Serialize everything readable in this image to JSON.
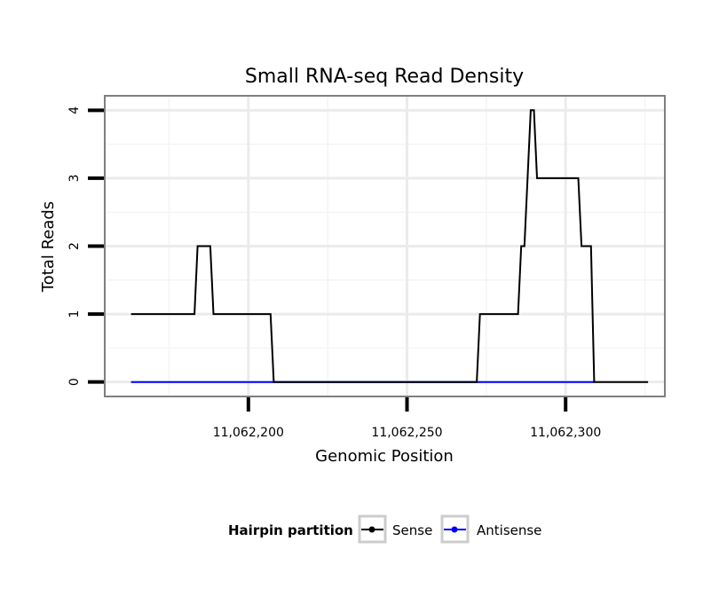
{
  "chart_data": {
    "type": "line",
    "title": "Small RNA-seq Read Density",
    "xlabel": "Genomic Position",
    "ylabel": "Total Reads",
    "xlim": [
      11062155,
      11062331
    ],
    "ylim": [
      -0.2,
      4.2
    ],
    "x_ticks": [
      11062200,
      11062250,
      11062300
    ],
    "x_tick_labels": [
      "11,062,200",
      "11,062,250",
      "11,062,300"
    ],
    "y_ticks": [
      0,
      1,
      2,
      3,
      4
    ],
    "y_tick_labels": [
      "0",
      "1",
      "2",
      "3",
      "4"
    ],
    "grid": true,
    "legend": {
      "title": "Hairpin partition",
      "position": "bottom",
      "entries": [
        "Sense",
        "Antisense"
      ]
    },
    "series": [
      {
        "name": "Sense",
        "color": "#000000",
        "x": [
          11062163,
          11062183,
          11062184,
          11062188,
          11062189,
          11062207,
          11062208,
          11062272,
          11062273,
          11062285,
          11062286,
          11062287,
          11062289,
          11062290,
          11062291,
          11062304,
          11062305,
          11062308,
          11062309,
          11062326
        ],
        "y": [
          1,
          1,
          2,
          2,
          1,
          1,
          0,
          0,
          1,
          1,
          2,
          2,
          4,
          4,
          3,
          3,
          2,
          2,
          0,
          0
        ]
      },
      {
        "name": "Antisense",
        "color": "#0000ff",
        "x": [
          11062163,
          11062309
        ],
        "y": [
          0,
          0
        ]
      }
    ]
  }
}
